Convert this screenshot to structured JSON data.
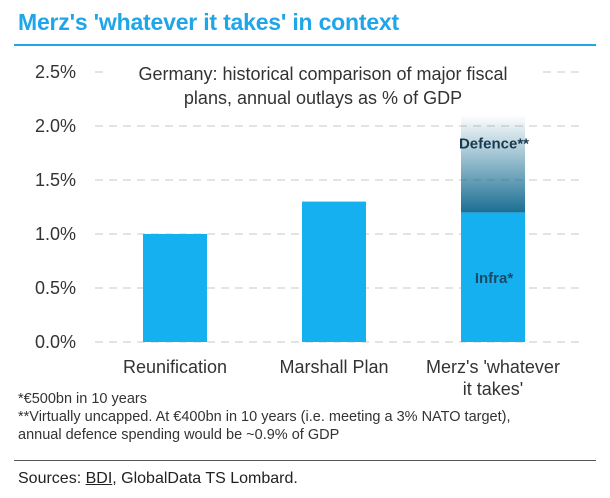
{
  "headline": "Merz's 'whatever it takes' in context",
  "chart_data": {
    "type": "bar",
    "stacked": true,
    "title_lines": [
      "Germany: historical comparison of major fiscal",
      "plans, annual outlays as % of GDP"
    ],
    "categories": [
      [
        "Reunification"
      ],
      [
        "Marshall Plan"
      ],
      [
        "Merz's 'whatever",
        "it takes'"
      ]
    ],
    "series": [
      {
        "name": "Infra*",
        "color": "#14b0f0",
        "values": [
          1.0,
          1.3,
          1.2
        ]
      },
      {
        "name": "Defence**",
        "color": "#1b6f93",
        "values": [
          0,
          0,
          0.9
        ],
        "gradient_fade_top": true
      }
    ],
    "ylim": [
      0,
      2.5
    ],
    "yticks": [
      0,
      0.5,
      1.0,
      1.5,
      2.0,
      2.5
    ],
    "ytick_labels": [
      "0.0%",
      "0.5%",
      "1.0%",
      "1.5%",
      "2.0%",
      "2.5%"
    ],
    "grid": "dashed-horizontal",
    "xlabel": "",
    "ylabel": ""
  },
  "footnotes": [
    "*€500bn in 10 years",
    "**Virtually uncapped. At €400bn in 10 years (i.e. meeting a 3% NATO target),",
    "annual defence spending would be ~0.9% of GDP"
  ],
  "source": {
    "prefix": "Sources: ",
    "link": "BDI",
    "suffix": ", GlobalData TS Lombard."
  }
}
